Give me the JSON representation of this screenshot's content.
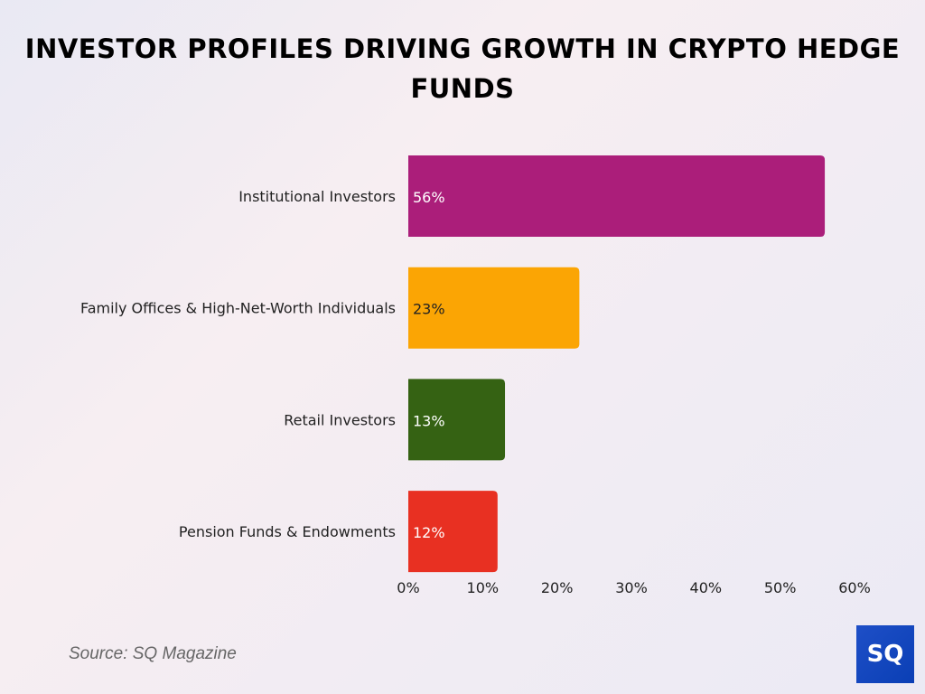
{
  "chart_data": {
    "type": "bar",
    "orientation": "horizontal",
    "title": "INVESTOR PROFILES DRIVING GROWTH IN CRYPTO HEDGE FUNDS",
    "categories": [
      "Institutional Investors",
      "Family Offices & High-Net-Worth Individuals",
      "Retail Investors",
      "Pension Funds & Endowments"
    ],
    "values": [
      56,
      23,
      13,
      12
    ],
    "data_labels": [
      "56%",
      "23%",
      "13%",
      "12%"
    ],
    "colors": [
      "#ab1e7a",
      "#fba504",
      "#356213",
      "#e83022"
    ],
    "label_colors": [
      "#ffffff",
      "#222222",
      "#ffffff",
      "#ffffff"
    ],
    "xlim": [
      0,
      60
    ],
    "xticks": [
      "0%",
      "10%",
      "20%",
      "30%",
      "40%",
      "50%",
      "60%"
    ],
    "grid": false,
    "xlabel": "",
    "ylabel": ""
  },
  "source": "Source: SQ Magazine",
  "logo_text": "SQ"
}
